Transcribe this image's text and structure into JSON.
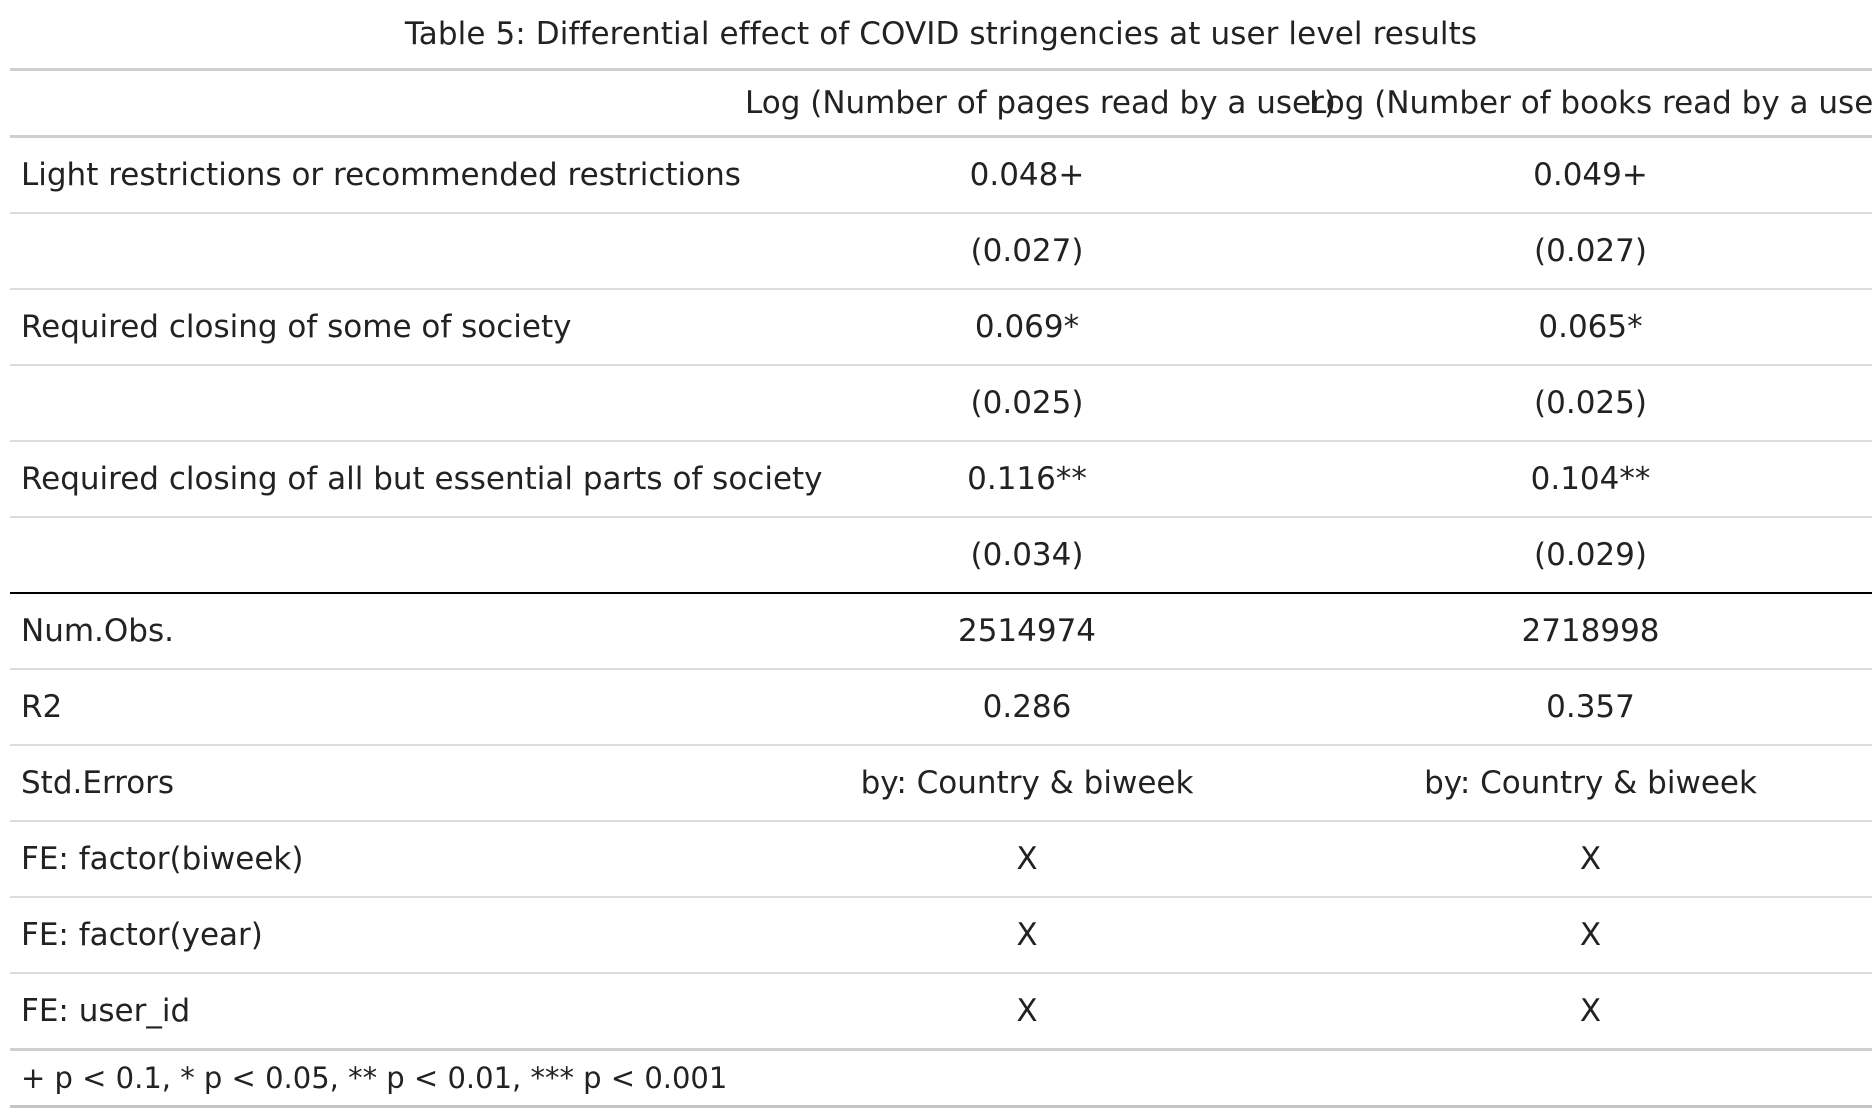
{
  "caption": "Table 5: Differential effect of COVID stringencies at user level results",
  "columns": [
    "",
    "Log (Number of pages read by a user)",
    "Log (Number of books read by a user)"
  ],
  "rows": [
    {
      "label": "Light restrictions or recommended restrictions",
      "pages": "0.048+",
      "books": "0.049+"
    },
    {
      "label": "",
      "pages": "(0.027)",
      "books": "(0.027)"
    },
    {
      "label": "Required closing of some of society",
      "pages": "0.069*",
      "books": "0.065*"
    },
    {
      "label": "",
      "pages": "(0.025)",
      "books": "(0.025)"
    },
    {
      "label": "Required closing of all but essential parts of society",
      "pages": "0.116**",
      "books": "0.104**"
    },
    {
      "label": "",
      "pages": "(0.034)",
      "books": "(0.029)"
    }
  ],
  "stats": [
    {
      "label": "Num.Obs.",
      "pages": "2514974",
      "books": "2718998"
    },
    {
      "label": "R2",
      "pages": "0.286",
      "books": "0.357"
    },
    {
      "label": "Std.Errors",
      "pages": "by: Country & biweek",
      "books": "by: Country & biweek"
    },
    {
      "label": "FE: factor(biweek)",
      "pages": "X",
      "books": "X"
    },
    {
      "label": "FE: factor(year)",
      "pages": "X",
      "books": "X"
    },
    {
      "label": "FE: user_id",
      "pages": "X",
      "books": "X"
    }
  ],
  "footnote": "+ p < 0.1, * p < 0.05, ** p < 0.01, *** p < 0.001"
}
